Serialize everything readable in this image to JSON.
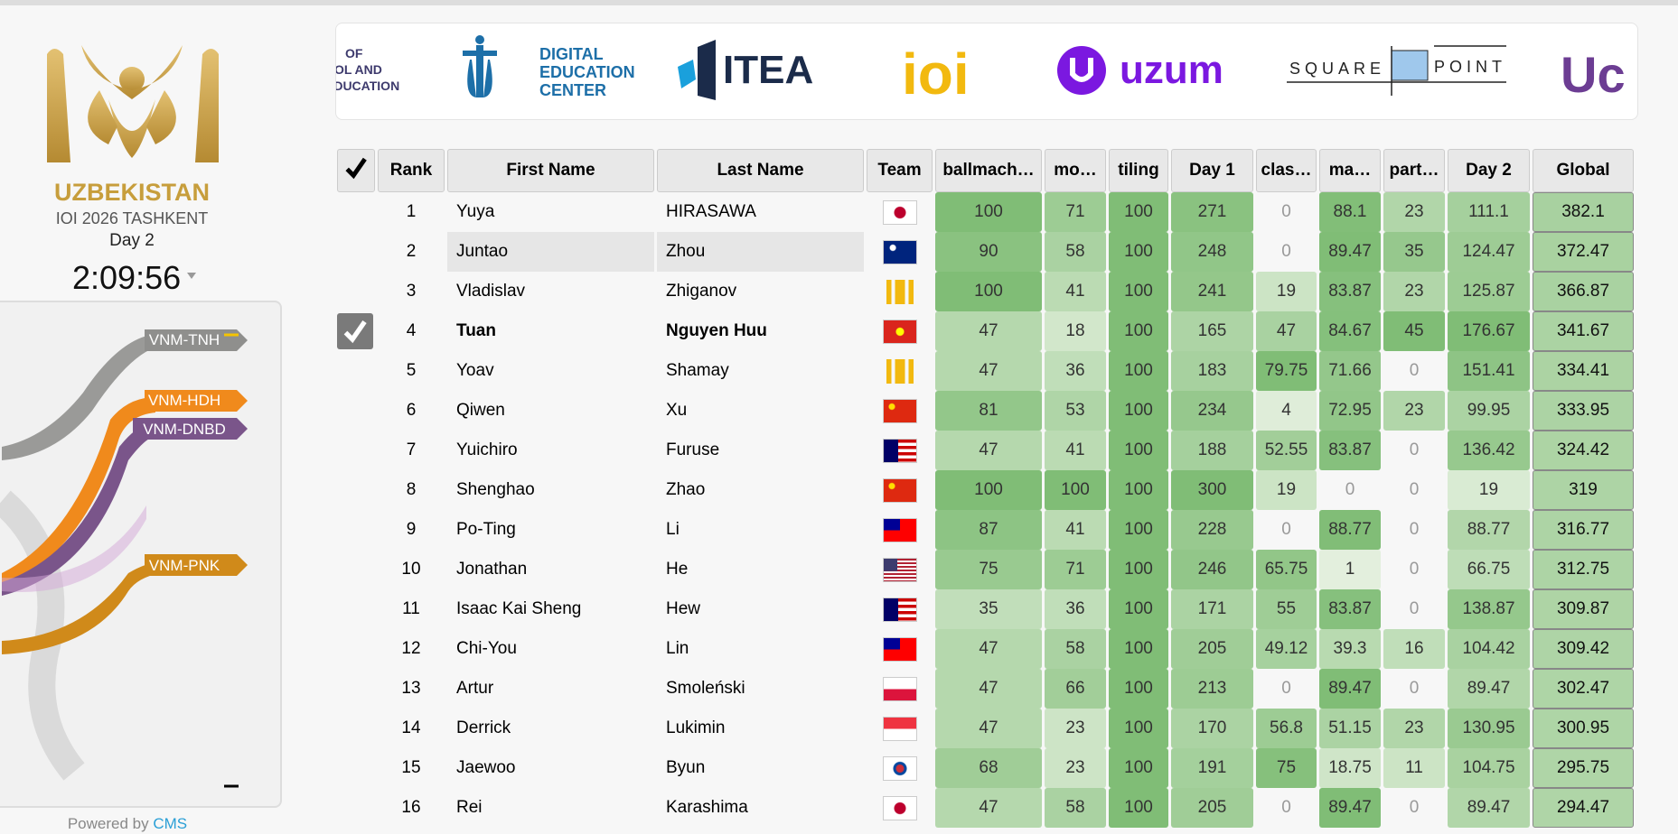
{
  "sidebar": {
    "country": "UZBEKISTAN",
    "event": "IOI 2026 TASHKENT",
    "day": "Day 2",
    "timer": "2:09:56",
    "chart_labels": [
      "VNM-TNH",
      "VNM-HDH",
      "VNM-DNBD",
      "VNM-PNK"
    ],
    "powered_by": "Powered by",
    "cms": "CMS"
  },
  "sponsors": {
    "ministry": [
      "OF",
      "OL AND",
      "EDUCATION"
    ],
    "dec": [
      "DIGITAL",
      "EDUCATION",
      "CENTER"
    ],
    "itea": "ITEA",
    "ioi": "ioi",
    "uzum": "uzum",
    "squarepoint": [
      "SQUARE",
      "POINT"
    ],
    "last": "Uc"
  },
  "table": {
    "headers": [
      "Rank",
      "First Name",
      "Last Name",
      "Team",
      "ballmach…",
      "mo…",
      "tiling",
      "Day 1",
      "clas…",
      "ma…",
      "part…",
      "Day 2",
      "Global"
    ],
    "rows": [
      [
        1,
        "Yuya",
        "HIRASAWA",
        100,
        71,
        100,
        271,
        0,
        88.1,
        23,
        111.1,
        382.1
      ],
      [
        2,
        "Juntao",
        "Zhou",
        90,
        58,
        100,
        248,
        0,
        89.47,
        35,
        124.47,
        372.47
      ],
      [
        3,
        "Vladislav",
        "Zhiganov",
        100,
        41,
        100,
        241,
        19,
        83.87,
        23,
        125.87,
        366.87
      ],
      [
        4,
        "Tuan",
        "Nguyen Huu",
        47,
        18,
        100,
        165,
        47,
        84.67,
        45,
        176.67,
        341.67
      ],
      [
        5,
        "Yoav",
        "Shamay",
        47,
        36,
        100,
        183,
        79.75,
        71.66,
        0,
        151.41,
        334.41
      ],
      [
        6,
        "Qiwen",
        "Xu",
        81,
        53,
        100,
        234,
        4,
        72.95,
        23,
        99.95,
        333.95
      ],
      [
        7,
        "Yuichiro",
        "Furuse",
        47,
        41,
        100,
        188,
        52.55,
        83.87,
        0,
        136.42,
        324.42
      ],
      [
        8,
        "Shenghao",
        "Zhao",
        100,
        100,
        100,
        300,
        19,
        0,
        0,
        19,
        319
      ],
      [
        9,
        "Po-Ting",
        "Li",
        87,
        41,
        100,
        228,
        0,
        88.77,
        0,
        88.77,
        316.77
      ],
      [
        10,
        "Jonathan",
        "He",
        75,
        71,
        100,
        246,
        65.75,
        1,
        0,
        66.75,
        312.75
      ],
      [
        11,
        "Isaac Kai Sheng",
        "Hew",
        35,
        36,
        100,
        171,
        55,
        83.87,
        0,
        138.87,
        309.87
      ],
      [
        12,
        "Chi-You",
        "Lin",
        47,
        58,
        100,
        205,
        49.12,
        39.3,
        16,
        104.42,
        309.42
      ],
      [
        13,
        "Artur",
        "Smoleński",
        47,
        66,
        100,
        213,
        0,
        89.47,
        0,
        89.47,
        302.47
      ],
      [
        14,
        "Derrick",
        "Lukimin",
        47,
        23,
        100,
        170,
        56.8,
        51.15,
        23,
        130.95,
        300.95
      ],
      [
        15,
        "Jaewoo",
        "Byun",
        68,
        23,
        100,
        191,
        75,
        18.75,
        11,
        104.75,
        295.75
      ],
      [
        16,
        "Rei",
        "Karashima",
        47,
        58,
        100,
        205,
        0,
        89.47,
        0,
        89.47,
        294.47
      ]
    ]
  }
}
